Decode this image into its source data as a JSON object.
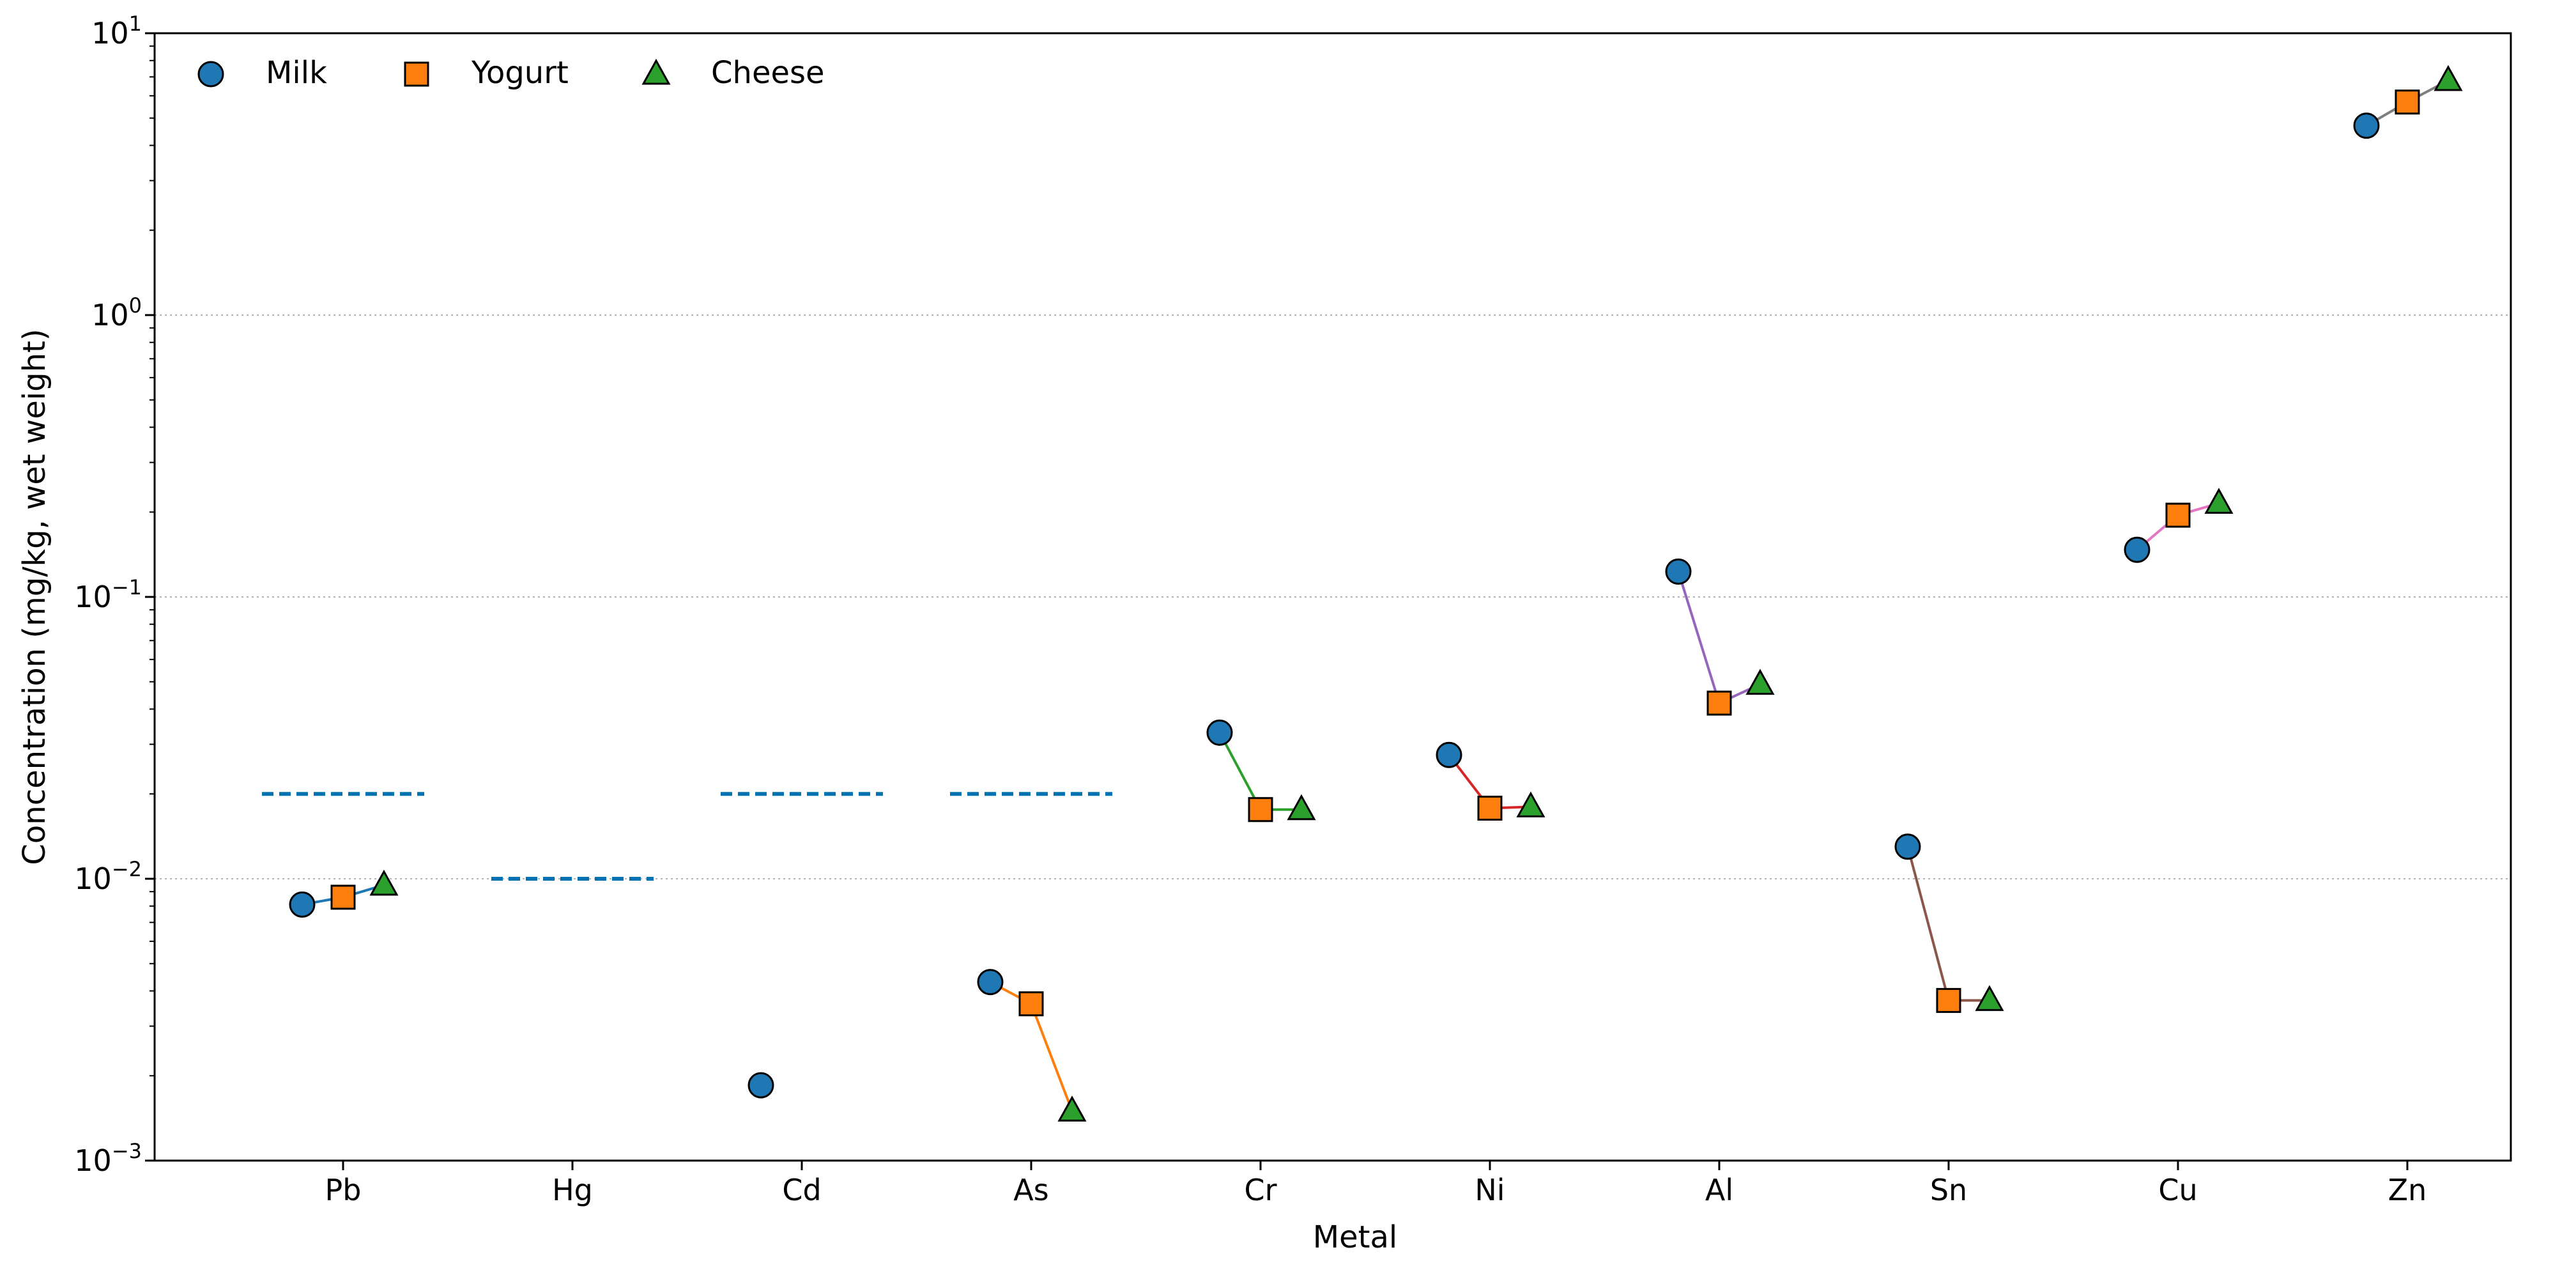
{
  "chart_data": {
    "type": "scatter",
    "xlabel": "Metal",
    "ylabel": "Concentration (mg/kg, wet weight)",
    "yscale": "log",
    "ylim": [
      0.001,
      10
    ],
    "grid": "y-major dotted",
    "legend_position": "top-left",
    "categories": [
      "Pb",
      "Hg",
      "Cd",
      "As",
      "Cr",
      "Ni",
      "Al",
      "Sn",
      "Cu",
      "Zn"
    ],
    "y_ticks": [
      {
        "value": 0.001,
        "base": "10",
        "exp": "−3"
      },
      {
        "value": 0.01,
        "base": "10",
        "exp": "−2"
      },
      {
        "value": 0.1,
        "base": "10",
        "exp": "−1"
      },
      {
        "value": 1,
        "base": "10",
        "exp": "0"
      },
      {
        "value": 10,
        "base": "10",
        "exp": "1"
      }
    ],
    "series": [
      {
        "name": "Milk",
        "marker": "circle",
        "color": "#1f77b4",
        "values": [
          0.0081,
          null,
          0.00185,
          0.0043,
          0.033,
          0.0275,
          0.123,
          0.013,
          0.147,
          4.7
        ]
      },
      {
        "name": "Yogurt",
        "marker": "square",
        "color": "#ff7f0e",
        "values": [
          0.0086,
          null,
          null,
          0.0036,
          0.0176,
          0.0178,
          0.042,
          0.0037,
          0.195,
          5.7
        ]
      },
      {
        "name": "Cheese",
        "marker": "triangle",
        "color": "#2ca02c",
        "values": [
          0.0095,
          null,
          null,
          0.0015,
          0.0176,
          0.018,
          0.049,
          0.0037,
          0.215,
          6.8
        ]
      }
    ],
    "connector_colors": [
      "#1f77b4",
      "#ff7f0e",
      "#2ca02c",
      "#ff7f0e",
      "#2ca02c",
      "#d62728",
      "#9467bd",
      "#8c564b",
      "#e377c2",
      "#7f7f7f"
    ],
    "limits": {
      "color": "#0072b2",
      "style": "dashed",
      "values": [
        0.02,
        0.01,
        0.02,
        0.02,
        null,
        null,
        null,
        null,
        null,
        null
      ]
    }
  }
}
